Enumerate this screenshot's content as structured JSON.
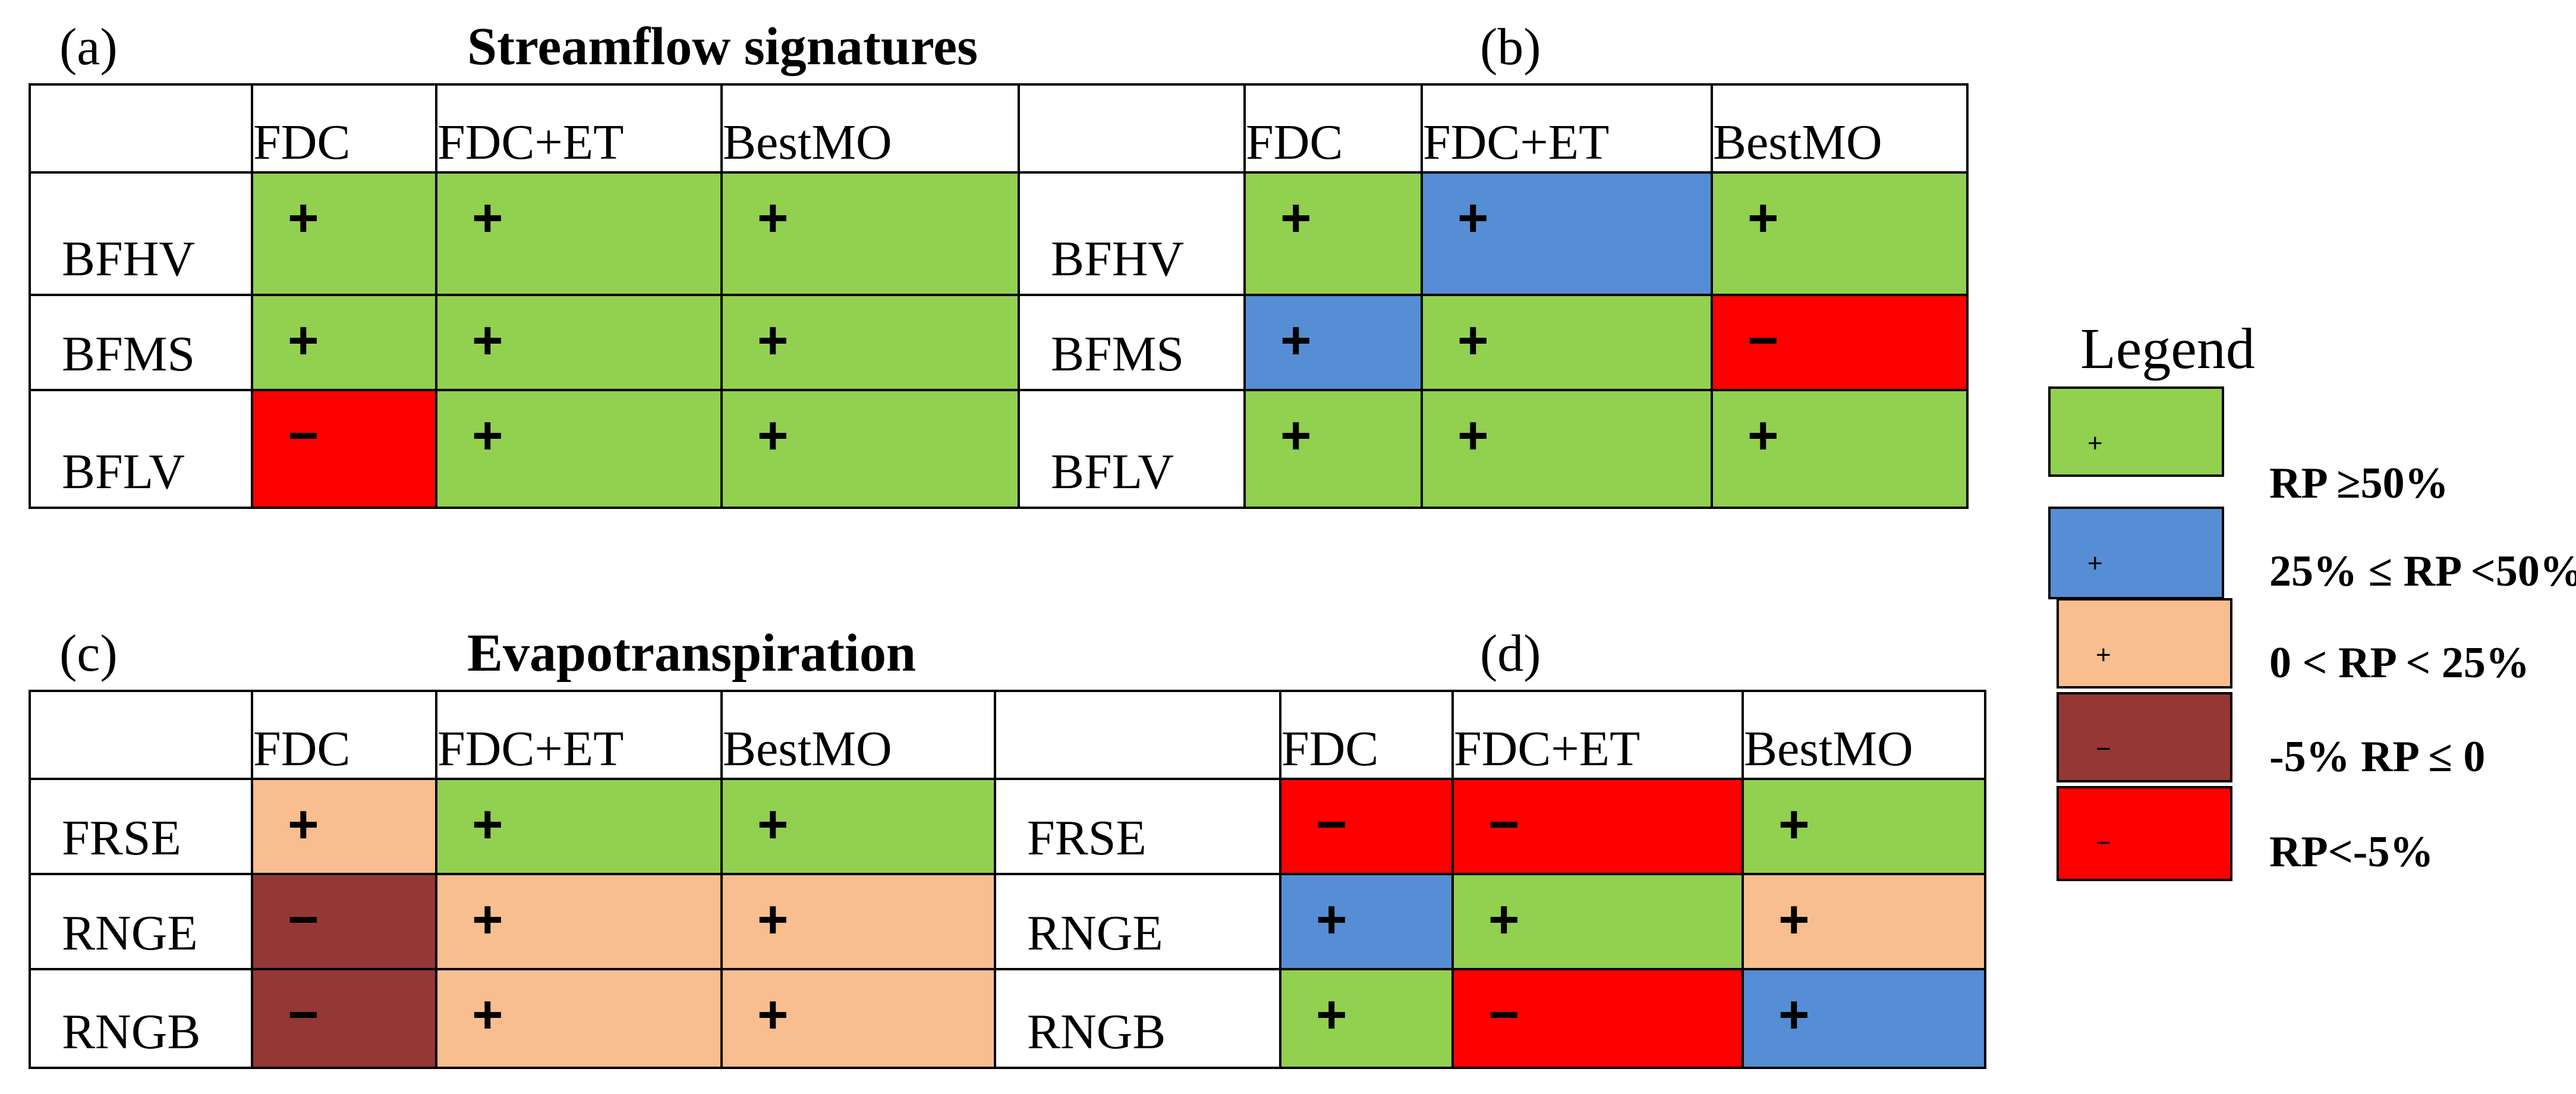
{
  "panel_labels": {
    "a": "(a)",
    "b": "(b)",
    "c": "(c)",
    "d": "(d)"
  },
  "section_titles": {
    "top": "Streamflow signatures",
    "bottom": "Evapotranspiration"
  },
  "columns": [
    "FDC",
    "FDC+ET",
    "BestMO"
  ],
  "colors": {
    "green": "#92d050",
    "blue": "#558ed5",
    "peach": "#f9be8f",
    "brown": "#953735",
    "red": "#ff0000"
  },
  "panels": {
    "a": {
      "rows": [
        {
          "label": "BFHV",
          "cells": [
            {
              "sign": "+",
              "color": "green"
            },
            {
              "sign": "+",
              "color": "green"
            },
            {
              "sign": "+",
              "color": "green"
            }
          ]
        },
        {
          "label": "BFMS",
          "cells": [
            {
              "sign": "+",
              "color": "green"
            },
            {
              "sign": "+",
              "color": "green"
            },
            {
              "sign": "+",
              "color": "green"
            }
          ]
        },
        {
          "label": "BFLV",
          "cells": [
            {
              "sign": "−",
              "color": "red"
            },
            {
              "sign": "+",
              "color": "green"
            },
            {
              "sign": "+",
              "color": "green"
            }
          ]
        }
      ]
    },
    "b": {
      "rows": [
        {
          "label": "BFHV",
          "cells": [
            {
              "sign": "+",
              "color": "green"
            },
            {
              "sign": "+",
              "color": "blue"
            },
            {
              "sign": "+",
              "color": "green"
            }
          ]
        },
        {
          "label": "BFMS",
          "cells": [
            {
              "sign": "+",
              "color": "blue"
            },
            {
              "sign": "+",
              "color": "green"
            },
            {
              "sign": "−",
              "color": "red"
            }
          ]
        },
        {
          "label": "BFLV",
          "cells": [
            {
              "sign": "+",
              "color": "green"
            },
            {
              "sign": "+",
              "color": "green"
            },
            {
              "sign": "+",
              "color": "green"
            }
          ]
        }
      ]
    },
    "c": {
      "rows": [
        {
          "label": "FRSE",
          "cells": [
            {
              "sign": "+",
              "color": "peach"
            },
            {
              "sign": "+",
              "color": "green"
            },
            {
              "sign": "+",
              "color": "green"
            }
          ]
        },
        {
          "label": "RNGE",
          "cells": [
            {
              "sign": "−",
              "color": "brown"
            },
            {
              "sign": "+",
              "color": "peach"
            },
            {
              "sign": "+",
              "color": "peach"
            }
          ]
        },
        {
          "label": "RNGB",
          "cells": [
            {
              "sign": "−",
              "color": "brown"
            },
            {
              "sign": "+",
              "color": "peach"
            },
            {
              "sign": "+",
              "color": "peach"
            }
          ]
        }
      ]
    },
    "d": {
      "rows": [
        {
          "label": "FRSE",
          "cells": [
            {
              "sign": "−",
              "color": "red"
            },
            {
              "sign": "−",
              "color": "red"
            },
            {
              "sign": "+",
              "color": "green"
            }
          ]
        },
        {
          "label": "RNGE",
          "cells": [
            {
              "sign": "+",
              "color": "blue"
            },
            {
              "sign": "+",
              "color": "green"
            },
            {
              "sign": "+",
              "color": "peach"
            }
          ]
        },
        {
          "label": "RNGB",
          "cells": [
            {
              "sign": "+",
              "color": "green"
            },
            {
              "sign": "−",
              "color": "red"
            },
            {
              "sign": "+",
              "color": "blue"
            }
          ]
        }
      ]
    }
  },
  "legend": {
    "title": "Legend",
    "items": [
      {
        "sign": "+",
        "color": "green",
        "text": "RP ≥50%"
      },
      {
        "sign": "+",
        "color": "blue",
        "text": "25% ≤ RP <50%"
      },
      {
        "sign": "+",
        "color": "peach",
        "text": "0 < RP < 25%"
      },
      {
        "sign": "−",
        "color": "brown",
        "text": "-5% RP ≤ 0"
      },
      {
        "sign": "−",
        "color": "red",
        "text": "RP<-5%"
      }
    ]
  }
}
